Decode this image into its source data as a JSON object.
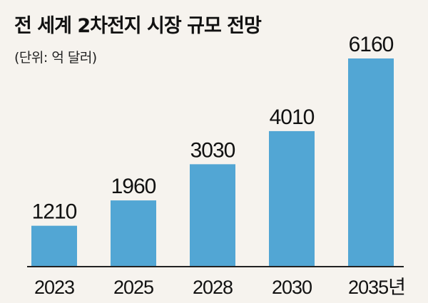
{
  "chart_data": {
    "type": "bar",
    "title": "전 세계 2차전지 시장 규모 전망",
    "subtitle": "(단위: 억 달러)",
    "categories": [
      "2023",
      "2025",
      "2028",
      "2030",
      "2035년"
    ],
    "values": [
      1210,
      1960,
      3030,
      4010,
      6160
    ],
    "xlabel": "",
    "ylabel": "",
    "ylim": [
      0,
      6160
    ],
    "grid": false,
    "legend": "none",
    "bar_color": "#52a6d4",
    "axis_color": "#222222"
  }
}
